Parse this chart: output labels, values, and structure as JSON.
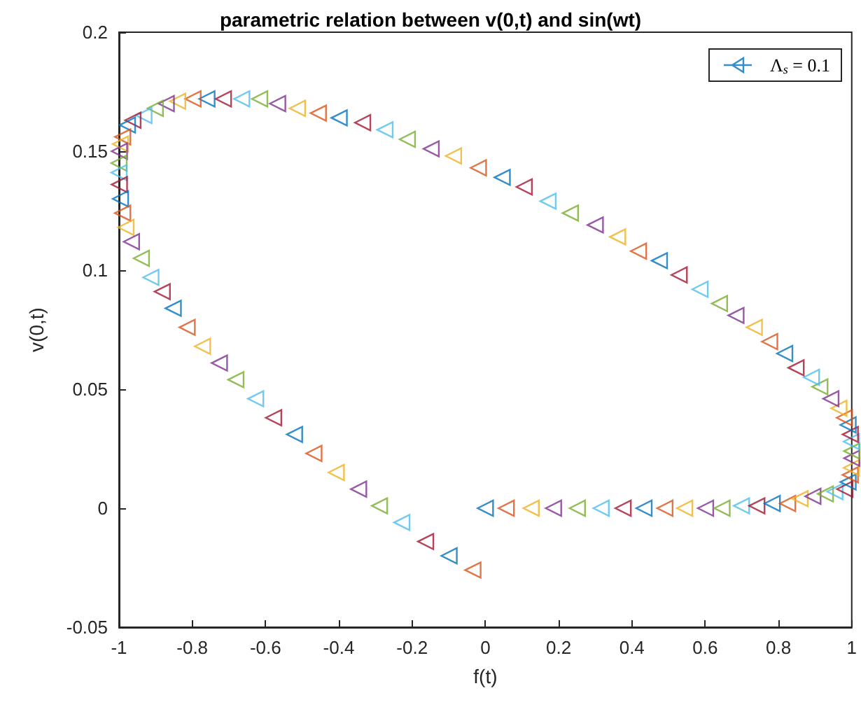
{
  "chart_data": {
    "type": "scatter",
    "title": "parametric relation between v(0,t) and sin(wt)",
    "xlabel": "f(t)",
    "ylabel": "v(0,t)",
    "xlim": [
      -1,
      1
    ],
    "xticks": [
      -1,
      -0.8,
      -0.6,
      -0.4,
      -0.2,
      0,
      0.2,
      0.4,
      0.6,
      0.8,
      1
    ],
    "ylim": [
      -0.05,
      0.2
    ],
    "yticks": [
      -0.05,
      0,
      0.05,
      0.1,
      0.15,
      0.2
    ],
    "grid": false,
    "legend": "top right",
    "marker": "triangle",
    "series": [
      {
        "name": "Λ$_{s}$ = 0.1",
        "color": "#0072bd",
        "x": [
          0,
          0.057,
          0.125,
          0.186,
          0.251,
          0.316,
          0.376,
          0.433,
          0.49,
          0.544,
          0.601,
          0.646,
          0.699,
          0.741,
          0.783,
          0.825,
          0.859,
          0.894,
          0.928,
          0.954,
          0.981,
          0.99,
          0.996,
          0.999,
          1,
          1,
          0.999,
          0.996,
          0.99,
          0.98,
          0.965,
          0.943,
          0.913,
          0.89,
          0.848,
          0.817,
          0.776,
          0.734,
          0.684,
          0.639,
          0.586,
          0.529,
          0.475,
          0.418,
          0.361,
          0.3,
          0.232,
          0.171,
          0.106,
          0.046,
          -0.019,
          -0.087,
          -0.148,
          -0.213,
          -0.274,
          -0.335,
          -0.399,
          -0.456,
          -0.513,
          -0.567,
          -0.616,
          -0.665,
          -0.715,
          -0.76,
          -0.798,
          -0.84,
          -0.871,
          -0.901,
          -0.932,
          -0.962,
          -0.977,
          -0.99,
          -0.996,
          -0.999,
          -1,
          -1,
          -0.999,
          -0.996,
          -0.99,
          -0.981,
          -0.966,
          -0.939,
          -0.913,
          -0.882,
          -0.852,
          -0.814,
          -0.772,
          -0.726,
          -0.681,
          -0.627,
          -0.578,
          -0.521,
          -0.468,
          -0.407,
          -0.346,
          -0.289,
          -0.228,
          -0.163,
          -0.099,
          -0.034
        ],
        "values": [
          0,
          0,
          0,
          0,
          0,
          0,
          0,
          0,
          0,
          0,
          0,
          0,
          0.001,
          0.001,
          0.002,
          0.002,
          0.004,
          0.005,
          0.006,
          0.007,
          0.008,
          0.011,
          0.014,
          0.017,
          0.021,
          0.024,
          0.028,
          0.031,
          0.035,
          0.038,
          0.042,
          0.046,
          0.051,
          0.055,
          0.059,
          0.065,
          0.07,
          0.076,
          0.081,
          0.086,
          0.092,
          0.098,
          0.104,
          0.108,
          0.114,
          0.119,
          0.124,
          0.129,
          0.135,
          0.139,
          0.143,
          0.148,
          0.151,
          0.155,
          0.159,
          0.162,
          0.164,
          0.166,
          0.168,
          0.17,
          0.172,
          0.172,
          0.172,
          0.172,
          0.172,
          0.171,
          0.17,
          0.168,
          0.165,
          0.163,
          0.161,
          0.156,
          0.153,
          0.15,
          0.145,
          0.141,
          0.136,
          0.13,
          0.124,
          0.118,
          0.112,
          0.105,
          0.097,
          0.091,
          0.084,
          0.076,
          0.068,
          0.061,
          0.054,
          0.046,
          0.038,
          0.031,
          0.023,
          0.015,
          0.008,
          0.001,
          -0.006,
          -0.014,
          -0.02,
          -0.026
        ],
        "colors": [
          "#0072bd",
          "#d95319",
          "#edb120",
          "#7e2f8e",
          "#77ac30",
          "#4dbeee",
          "#a2142f",
          "#0072bd",
          "#d95319",
          "#edb120",
          "#7e2f8e",
          "#77ac30",
          "#4dbeee",
          "#a2142f",
          "#0072bd",
          "#d95319",
          "#edb120",
          "#7e2f8e",
          "#77ac30",
          "#4dbeee",
          "#a2142f",
          "#0072bd",
          "#d95319",
          "#edb120",
          "#7e2f8e",
          "#77ac30",
          "#4dbeee",
          "#a2142f",
          "#0072bd",
          "#d95319",
          "#edb120",
          "#7e2f8e",
          "#77ac30",
          "#4dbeee",
          "#a2142f",
          "#0072bd",
          "#d95319",
          "#edb120",
          "#7e2f8e",
          "#77ac30",
          "#4dbeee",
          "#a2142f",
          "#0072bd",
          "#d95319",
          "#edb120",
          "#7e2f8e",
          "#77ac30",
          "#4dbeee",
          "#a2142f",
          "#0072bd",
          "#d95319",
          "#edb120",
          "#7e2f8e",
          "#77ac30",
          "#4dbeee",
          "#a2142f",
          "#0072bd",
          "#d95319",
          "#edb120",
          "#7e2f8e",
          "#77ac30",
          "#4dbeee",
          "#a2142f",
          "#0072bd",
          "#d95319",
          "#edb120",
          "#7e2f8e",
          "#77ac30",
          "#4dbeee",
          "#a2142f",
          "#0072bd",
          "#d95319",
          "#edb120",
          "#7e2f8e",
          "#77ac30",
          "#4dbeee",
          "#a2142f",
          "#0072bd",
          "#d95319",
          "#edb120",
          "#7e2f8e",
          "#77ac30",
          "#4dbeee",
          "#a2142f",
          "#0072bd",
          "#d95319",
          "#edb120",
          "#7e2f8e",
          "#77ac30",
          "#4dbeee",
          "#a2142f",
          "#0072bd",
          "#d95319",
          "#edb120",
          "#7e2f8e",
          "#77ac30",
          "#4dbeee",
          "#a2142f",
          "#0072bd",
          "#d95319"
        ]
      }
    ]
  }
}
